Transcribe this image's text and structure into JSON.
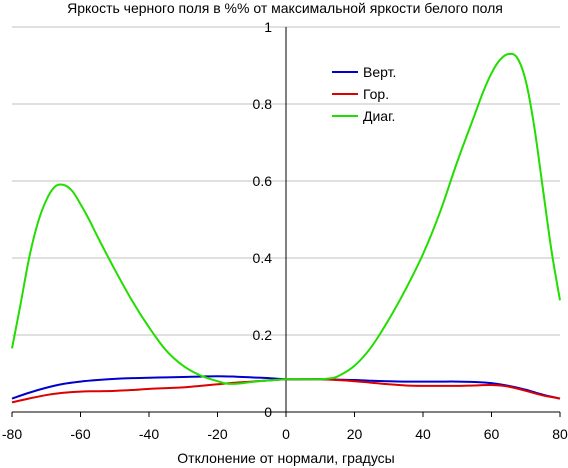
{
  "chart_data": {
    "type": "line",
    "title": "Яркость черного поля в %% от максимальной яркости белого поля",
    "xlabel": "Отклонение от нормали, градусы",
    "ylabel": "",
    "xlim": [
      -80,
      80
    ],
    "ylim": [
      0,
      1
    ],
    "x_ticks": [
      "-80",
      "-60",
      "-40",
      "-20",
      "0",
      "20",
      "40",
      "60",
      "80"
    ],
    "y_ticks": [
      "0",
      "0.2",
      "0.4",
      "0.6",
      "0.8",
      "1"
    ],
    "grid": "horizontal",
    "legend_position": "top-right",
    "series": [
      {
        "name": "Верт.",
        "color": "#0000cc",
        "x": [
          -80,
          -75,
          -70,
          -65,
          -60,
          -55,
          -50,
          -45,
          -40,
          -35,
          -30,
          -25,
          -20,
          -15,
          -10,
          -5,
          0,
          5,
          10,
          15,
          20,
          25,
          30,
          35,
          40,
          45,
          50,
          55,
          60,
          65,
          70,
          75,
          80
        ],
        "y": [
          0.035,
          0.05,
          0.063,
          0.073,
          0.079,
          0.083,
          0.086,
          0.088,
          0.089,
          0.09,
          0.091,
          0.092,
          0.093,
          0.092,
          0.09,
          0.088,
          0.085,
          0.085,
          0.085,
          0.084,
          0.083,
          0.081,
          0.08,
          0.079,
          0.079,
          0.079,
          0.079,
          0.078,
          0.075,
          0.068,
          0.058,
          0.045,
          0.035
        ]
      },
      {
        "name": "Гор.",
        "color": "#dd0000",
        "x": [
          -80,
          -75,
          -70,
          -65,
          -60,
          -55,
          -50,
          -45,
          -40,
          -35,
          -30,
          -25,
          -20,
          -15,
          -10,
          -5,
          0,
          5,
          10,
          15,
          20,
          25,
          30,
          35,
          40,
          45,
          50,
          55,
          60,
          65,
          70,
          75,
          80
        ],
        "y": [
          0.025,
          0.035,
          0.044,
          0.05,
          0.053,
          0.054,
          0.055,
          0.057,
          0.06,
          0.062,
          0.064,
          0.068,
          0.072,
          0.076,
          0.079,
          0.082,
          0.085,
          0.085,
          0.085,
          0.083,
          0.08,
          0.076,
          0.072,
          0.069,
          0.068,
          0.068,
          0.068,
          0.069,
          0.07,
          0.066,
          0.055,
          0.043,
          0.035
        ]
      },
      {
        "name": "Диаг.",
        "color": "#22dd00",
        "x": [
          -80,
          -77.5,
          -75,
          -72.5,
          -70,
          -67.5,
          -65,
          -62.5,
          -60,
          -57.5,
          -55,
          -50,
          -45,
          -40,
          -35,
          -30,
          -25,
          -20,
          -17.5,
          -15,
          -12.5,
          -10,
          -5,
          0,
          5,
          10,
          12.5,
          15,
          20,
          25,
          30,
          35,
          40,
          45,
          50,
          55,
          57.5,
          60,
          62.5,
          65,
          67.5,
          70,
          72.5,
          75,
          77.5,
          80
        ],
        "y": [
          0.165,
          0.28,
          0.4,
          0.49,
          0.55,
          0.585,
          0.59,
          0.575,
          0.54,
          0.5,
          0.455,
          0.37,
          0.29,
          0.22,
          0.16,
          0.12,
          0.095,
          0.08,
          0.074,
          0.073,
          0.075,
          0.078,
          0.082,
          0.085,
          0.085,
          0.085,
          0.087,
          0.092,
          0.12,
          0.17,
          0.24,
          0.32,
          0.41,
          0.52,
          0.65,
          0.77,
          0.83,
          0.88,
          0.915,
          0.93,
          0.92,
          0.86,
          0.74,
          0.58,
          0.42,
          0.29
        ]
      }
    ]
  }
}
